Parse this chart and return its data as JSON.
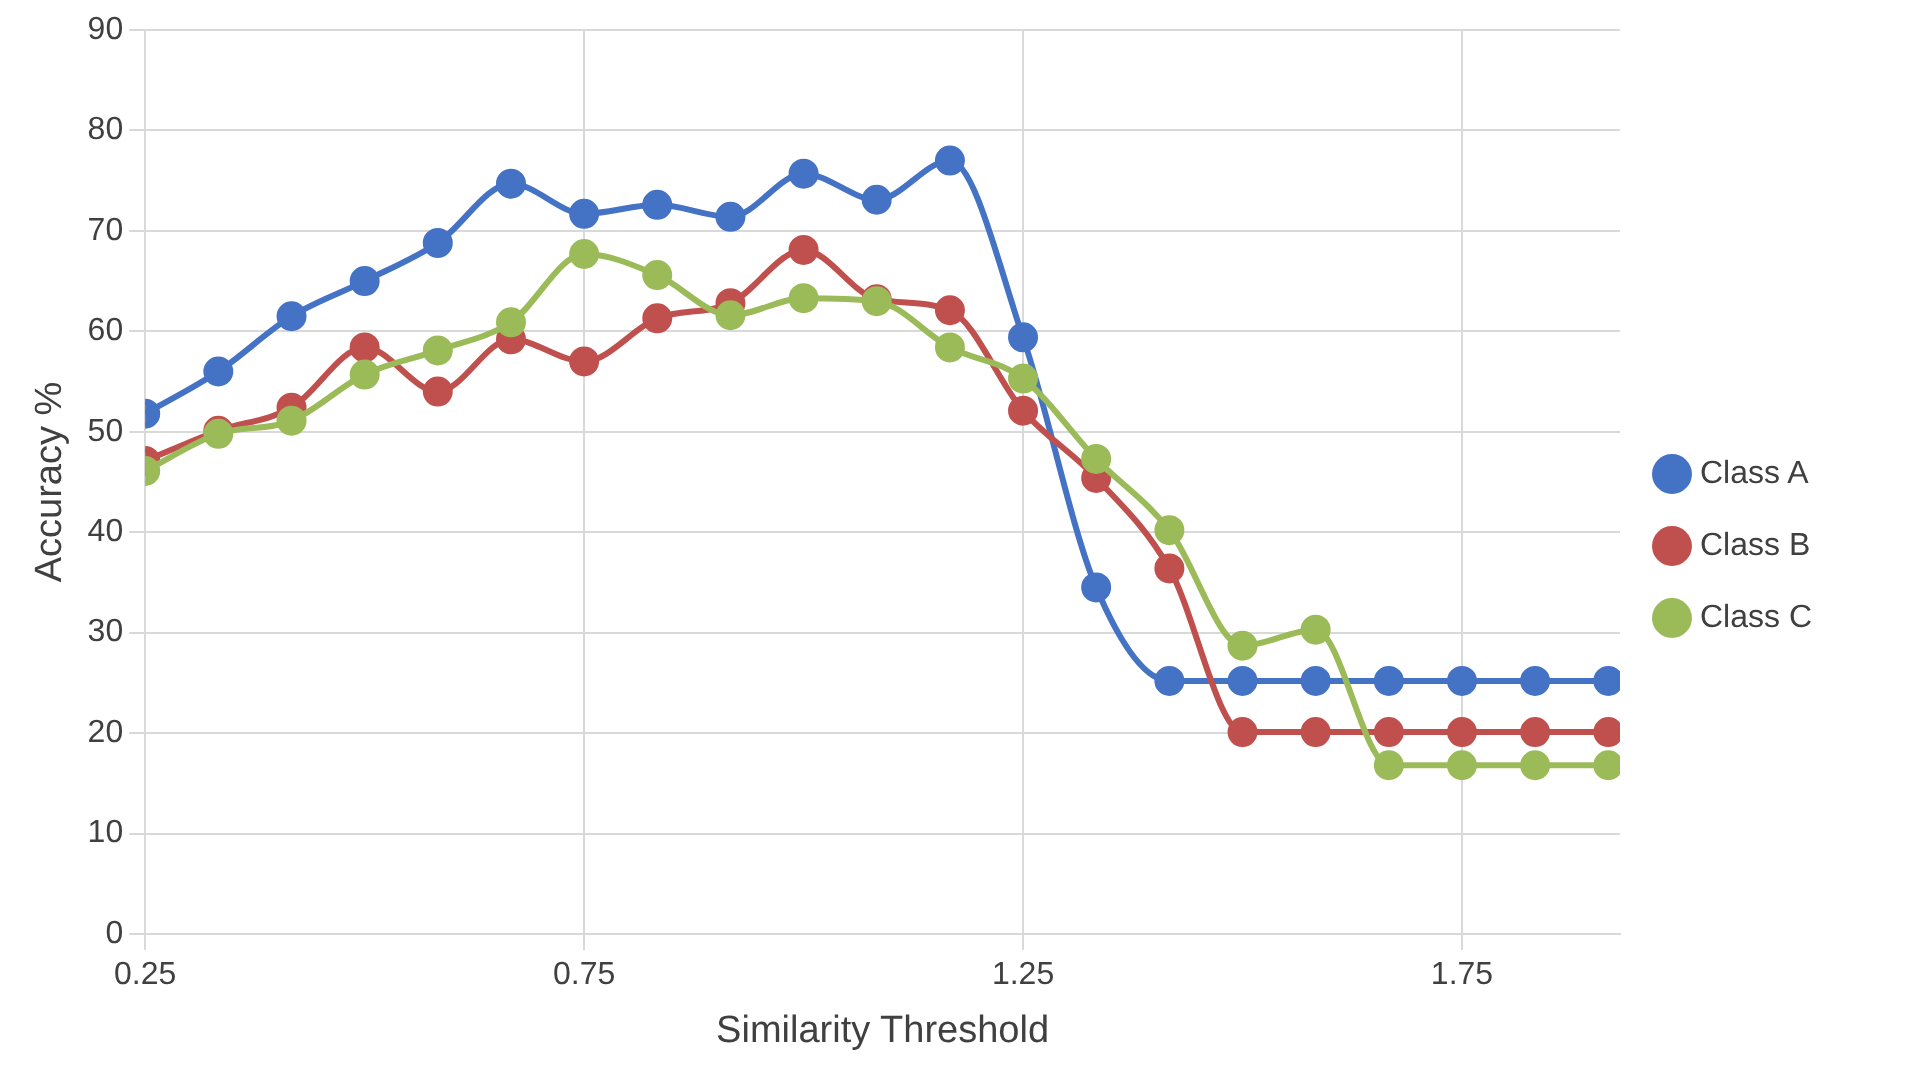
{
  "chart_data": {
    "type": "line",
    "xlabel": "Similarity Threshold",
    "ylabel": "Accuracy %",
    "x": [
      0.25,
      0.3333,
      0.4167,
      0.5,
      0.5833,
      0.6667,
      0.75,
      0.8333,
      0.9167,
      1.0,
      1.0833,
      1.1667,
      1.25,
      1.3333,
      1.4167,
      1.5,
      1.5833,
      1.6667,
      1.75,
      1.8333,
      1.9167
    ],
    "series": [
      {
        "name": "Class A",
        "color": "#4472c4",
        "values": [
          51.8,
          56,
          61.5,
          65,
          68.8,
          74.7,
          71.7,
          72.6,
          71.4,
          75.7,
          73.1,
          77,
          59.4,
          34.5,
          25.2,
          25.2,
          25.2,
          25.2,
          25.2,
          25.2,
          25.2
        ]
      },
      {
        "name": "Class B",
        "color": "#c0504d",
        "values": [
          47.1,
          50.1,
          52.4,
          58.4,
          54,
          59.2,
          57,
          61.3,
          62.8,
          68.1,
          63.2,
          62.1,
          52.1,
          45.4,
          36.4,
          20.1,
          20.1,
          20.1,
          20.1,
          20.1,
          20.1
        ]
      },
      {
        "name": "Class C",
        "color": "#9bbb59",
        "values": [
          46.1,
          49.8,
          51.1,
          55.7,
          58.1,
          60.9,
          67.7,
          65.6,
          61.6,
          63.3,
          63,
          58.4,
          55.3,
          47.3,
          40.2,
          28.7,
          30.3,
          16.8,
          16.8,
          16.8,
          16.8
        ]
      }
    ],
    "xlim": [
      0.25,
      1.93
    ],
    "xticks": [
      0.25,
      0.75,
      1.25,
      1.75
    ],
    "ylim": [
      0,
      90
    ],
    "yticks": [
      0,
      10,
      20,
      30,
      40,
      50,
      60,
      70,
      80,
      90
    ],
    "grid": true,
    "legend": "right",
    "marker": "circle",
    "line_style": "solid"
  }
}
